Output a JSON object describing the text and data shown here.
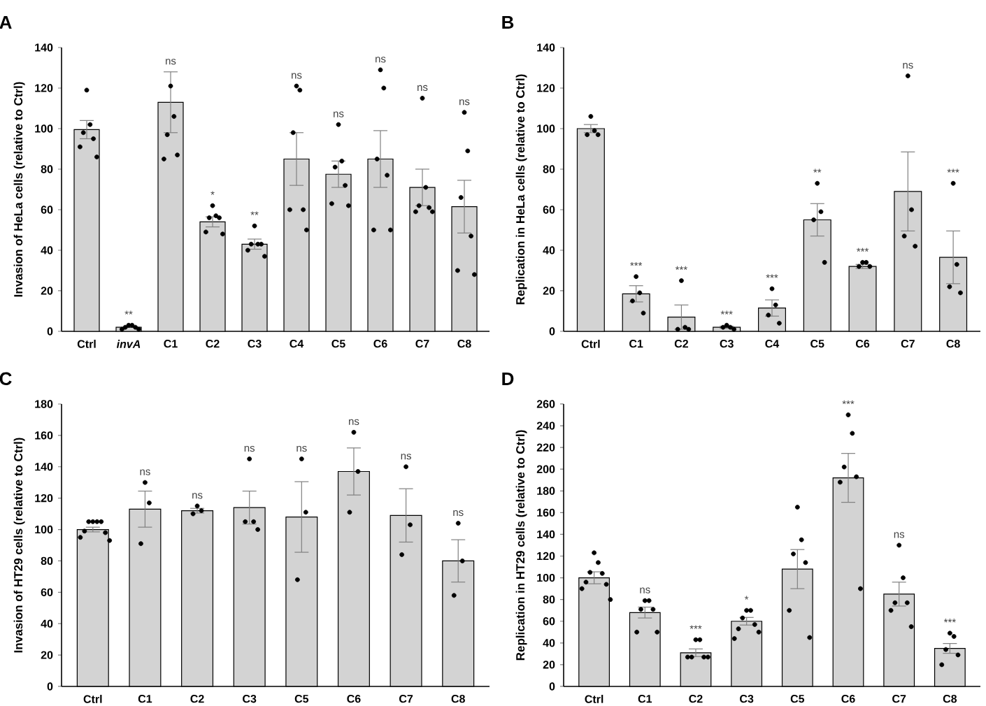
{
  "chart_data": [
    {
      "type": "bar",
      "title": "A",
      "ylabel": "Invasion of HeLa cells (relative to Ctrl)",
      "categories": [
        "Ctrl",
        "*invA*",
        "C1",
        "C2",
        "C3",
        "C4",
        "C5",
        "C6",
        "C7",
        "C8"
      ],
      "series": [
        {
          "color": "#d3d3d3",
          "values": [
            99.5,
            2,
            113,
            54,
            43,
            85,
            77.5,
            85,
            71,
            61.5
          ],
          "errors": [
            4.5,
            null,
            15,
            2.5,
            2.5,
            13,
            6.5,
            14,
            9,
            13
          ]
        },
        {
          "type": "scatter",
          "color": "#000000",
          "marker": "circle",
          "x": [
            "Ctrl",
            "Ctrl",
            "Ctrl",
            "Ctrl",
            "Ctrl",
            "Ctrl",
            "*invA*",
            "*invA*",
            "*invA*",
            "*invA*",
            "*invA*",
            "*invA*",
            "C1",
            "C1",
            "C1",
            "C1",
            "C1",
            "C2",
            "C2",
            "C2",
            "C2",
            "C2",
            "C2",
            "C3",
            "C3",
            "C3",
            "C3",
            "C3",
            "C3",
            "C4",
            "C4",
            "C4",
            "C4",
            "C4",
            "C4",
            "C5",
            "C5",
            "C5",
            "C5",
            "C5",
            "C5",
            "C6",
            "C6",
            "C6",
            "C6",
            "C6",
            "C6",
            "C7",
            "C7",
            "C7",
            "C7",
            "C7",
            "C7",
            "C8",
            "C8",
            "C8",
            "C8",
            "C8",
            "C8"
          ],
          "values": [
            119,
            102,
            98,
            95,
            91,
            86,
            1,
            3,
            2,
            3,
            2,
            1,
            121,
            106,
            97,
            87,
            85,
            62,
            57,
            56,
            56,
            49,
            48,
            52,
            43,
            43,
            43,
            40,
            37,
            121,
            119,
            98,
            60,
            60,
            50,
            102,
            84,
            81,
            72,
            63,
            62,
            129,
            120,
            85,
            77,
            50,
            50,
            115,
            71,
            62,
            61,
            59,
            59,
            108,
            89,
            66,
            47,
            30,
            28
          ]
        }
      ],
      "ylim": [
        0,
        140
      ],
      "yticks": [
        0,
        20,
        40,
        60,
        80,
        100,
        120,
        140
      ],
      "annotations": [
        {
          "text": "**",
          "x": "*invA*",
          "y": 3
        },
        {
          "text": "ns",
          "x": "C1",
          "y": 128
        },
        {
          "text": "*",
          "x": "C2",
          "y": 62
        },
        {
          "text": "**",
          "x": "C3",
          "y": 52
        },
        {
          "text": "ns",
          "x": "C4",
          "y": 121
        },
        {
          "text": "ns",
          "x": "C5",
          "y": 102
        },
        {
          "text": "ns",
          "x": "C6",
          "y": 129
        },
        {
          "text": "ns",
          "x": "C7",
          "y": 115
        },
        {
          "text": "ns",
          "x": "C8",
          "y": 108
        }
      ]
    },
    {
      "type": "bar",
      "title": "B",
      "ylabel": "Replication in HeLa cells (relative to Ctrl)",
      "categories": [
        "Ctrl",
        "C1",
        "C2",
        "C3",
        "C4",
        "C5",
        "C6",
        "C7",
        "C8"
      ],
      "series": [
        {
          "color": "#d3d3d3",
          "values": [
            100,
            18.5,
            7,
            2,
            11.5,
            55,
            32,
            69,
            36.5
          ],
          "errors": [
            2,
            4,
            6,
            0.5,
            4,
            8,
            1,
            19.5,
            13
          ]
        },
        {
          "type": "scatter",
          "color": "#000000",
          "marker": "circle",
          "x": [
            "Ctrl",
            "Ctrl",
            "Ctrl",
            "Ctrl",
            "C1",
            "C1",
            "C1",
            "C1",
            "C2",
            "C2",
            "C2",
            "C2",
            "C3",
            "C3",
            "C3",
            "C3",
            "C4",
            "C4",
            "C4",
            "C4",
            "C5",
            "C5",
            "C5",
            "C5",
            "C6",
            "C6",
            "C6",
            "C6",
            "C7",
            "C7",
            "C7",
            "C7",
            "C8",
            "C8",
            "C8",
            "C8"
          ],
          "values": [
            106,
            99,
            97,
            97,
            27,
            19,
            15,
            9,
            25,
            1,
            2,
            1,
            3,
            2,
            2,
            1,
            21,
            13,
            8,
            4,
            73,
            59,
            55,
            34,
            34,
            34,
            32,
            32,
            126,
            60,
            47,
            42,
            73,
            33,
            22,
            19
          ]
        }
      ],
      "ylim": [
        0,
        140
      ],
      "yticks": [
        0,
        20,
        40,
        60,
        80,
        100,
        120,
        140
      ],
      "annotations": [
        {
          "text": "***",
          "x": "C1",
          "y": 27
        },
        {
          "text": "***",
          "x": "C2",
          "y": 25
        },
        {
          "text": "***",
          "x": "C3",
          "y": 3
        },
        {
          "text": "***",
          "x": "C4",
          "y": 21
        },
        {
          "text": "**",
          "x": "C5",
          "y": 73
        },
        {
          "text": "***",
          "x": "C6",
          "y": 34
        },
        {
          "text": "ns",
          "x": "C7",
          "y": 126
        },
        {
          "text": "***",
          "x": "C8",
          "y": 73
        }
      ]
    },
    {
      "type": "bar",
      "title": "C",
      "ylabel": "Invasion of HT29 cells (relative to Ctrl)",
      "categories": [
        "Ctrl",
        "C1",
        "C2",
        "C3",
        "C5",
        "C6",
        "C7",
        "C8"
      ],
      "series": [
        {
          "color": "#d3d3d3",
          "values": [
            100,
            113,
            112,
            114,
            108,
            137,
            109,
            80
          ],
          "errors": [
            1.5,
            11.5,
            1.5,
            10.5,
            22.5,
            15,
            17,
            13.5
          ]
        },
        {
          "type": "scatter",
          "color": "#000000",
          "marker": "circle",
          "x": [
            "Ctrl",
            "Ctrl",
            "Ctrl",
            "Ctrl",
            "Ctrl",
            "Ctrl",
            "Ctrl",
            "Ctrl",
            "C1",
            "C1",
            "C1",
            "C2",
            "C2",
            "C2",
            "C3",
            "C3",
            "C3",
            "C3",
            "C5",
            "C5",
            "C5",
            "C6",
            "C6",
            "C6",
            "C7",
            "C7",
            "C7",
            "C8",
            "C8",
            "C8"
          ],
          "values": [
            105,
            105,
            105,
            105,
            99,
            98,
            95,
            93,
            130,
            117,
            91,
            115,
            112,
            110,
            145,
            105,
            105,
            100,
            145,
            111,
            68,
            162,
            137,
            111,
            140,
            103,
            84,
            104,
            80,
            58
          ]
        }
      ],
      "ylim": [
        0,
        180
      ],
      "yticks": [
        0,
        20,
        40,
        60,
        80,
        100,
        120,
        140,
        160,
        180
      ],
      "annotations": [
        {
          "text": "ns",
          "x": "C1",
          "y": 130
        },
        {
          "text": "ns",
          "x": "C2",
          "y": 115
        },
        {
          "text": "ns",
          "x": "C3",
          "y": 145
        },
        {
          "text": "ns",
          "x": "C5",
          "y": 145
        },
        {
          "text": "ns",
          "x": "C6",
          "y": 162
        },
        {
          "text": "ns",
          "x": "C7",
          "y": 140
        },
        {
          "text": "ns",
          "x": "C8",
          "y": 104
        }
      ]
    },
    {
      "type": "bar",
      "title": "D",
      "ylabel": "Replication in HT29 cells (relative to Ctrl)",
      "categories": [
        "Ctrl",
        "C1",
        "C2",
        "C3",
        "C5",
        "C6",
        "C7",
        "C8"
      ],
      "series": [
        {
          "color": "#d3d3d3",
          "values": [
            100,
            68,
            31,
            60,
            108,
            192,
            85,
            35
          ],
          "errors": [
            5.5,
            5,
            3.5,
            3.5,
            18,
            22.5,
            11,
            4.5
          ]
        },
        {
          "type": "scatter",
          "color": "#000000",
          "marker": "circle",
          "x": [
            "Ctrl",
            "Ctrl",
            "Ctrl",
            "Ctrl",
            "Ctrl",
            "Ctrl",
            "Ctrl",
            "Ctrl",
            "C1",
            "C1",
            "C1",
            "C1",
            "C1",
            "C1",
            "C2",
            "C2",
            "C2",
            "C2",
            "C2",
            "C2",
            "C3",
            "C3",
            "C3",
            "C3",
            "C3",
            "C3",
            "C3",
            "C5",
            "C5",
            "C5",
            "C5",
            "C5",
            "C5",
            "C6",
            "C6",
            "C6",
            "C6",
            "C6",
            "C6",
            "C7",
            "C7",
            "C7",
            "C7",
            "C7",
            "C7",
            "C8",
            "C8",
            "C8",
            "C8",
            "C8"
          ],
          "values": [
            123,
            114,
            105,
            104,
            96,
            94,
            90,
            80,
            79,
            79,
            71,
            71,
            50,
            50,
            43,
            43,
            27,
            27,
            27,
            27,
            70,
            70,
            63,
            57,
            53,
            50,
            44,
            165,
            135,
            122,
            114,
            70,
            45,
            250,
            233,
            202,
            193,
            188,
            90,
            130,
            100,
            77,
            77,
            70,
            55,
            49,
            46,
            34,
            29,
            20
          ]
        }
      ],
      "ylim": [
        0,
        260
      ],
      "yticks": [
        0,
        20,
        40,
        60,
        80,
        100,
        120,
        140,
        160,
        180,
        200,
        220,
        240,
        260
      ],
      "annotations": [
        {
          "text": "ns",
          "x": "C1",
          "y": 79
        },
        {
          "text": "***",
          "x": "C2",
          "y": 43
        },
        {
          "text": "*",
          "x": "C3",
          "y": 70
        },
        {
          "text": "***",
          "x": "C6",
          "y": 250
        },
        {
          "text": "ns",
          "x": "C7",
          "y": 130
        },
        {
          "text": "***",
          "x": "C8",
          "y": 49
        }
      ]
    }
  ]
}
